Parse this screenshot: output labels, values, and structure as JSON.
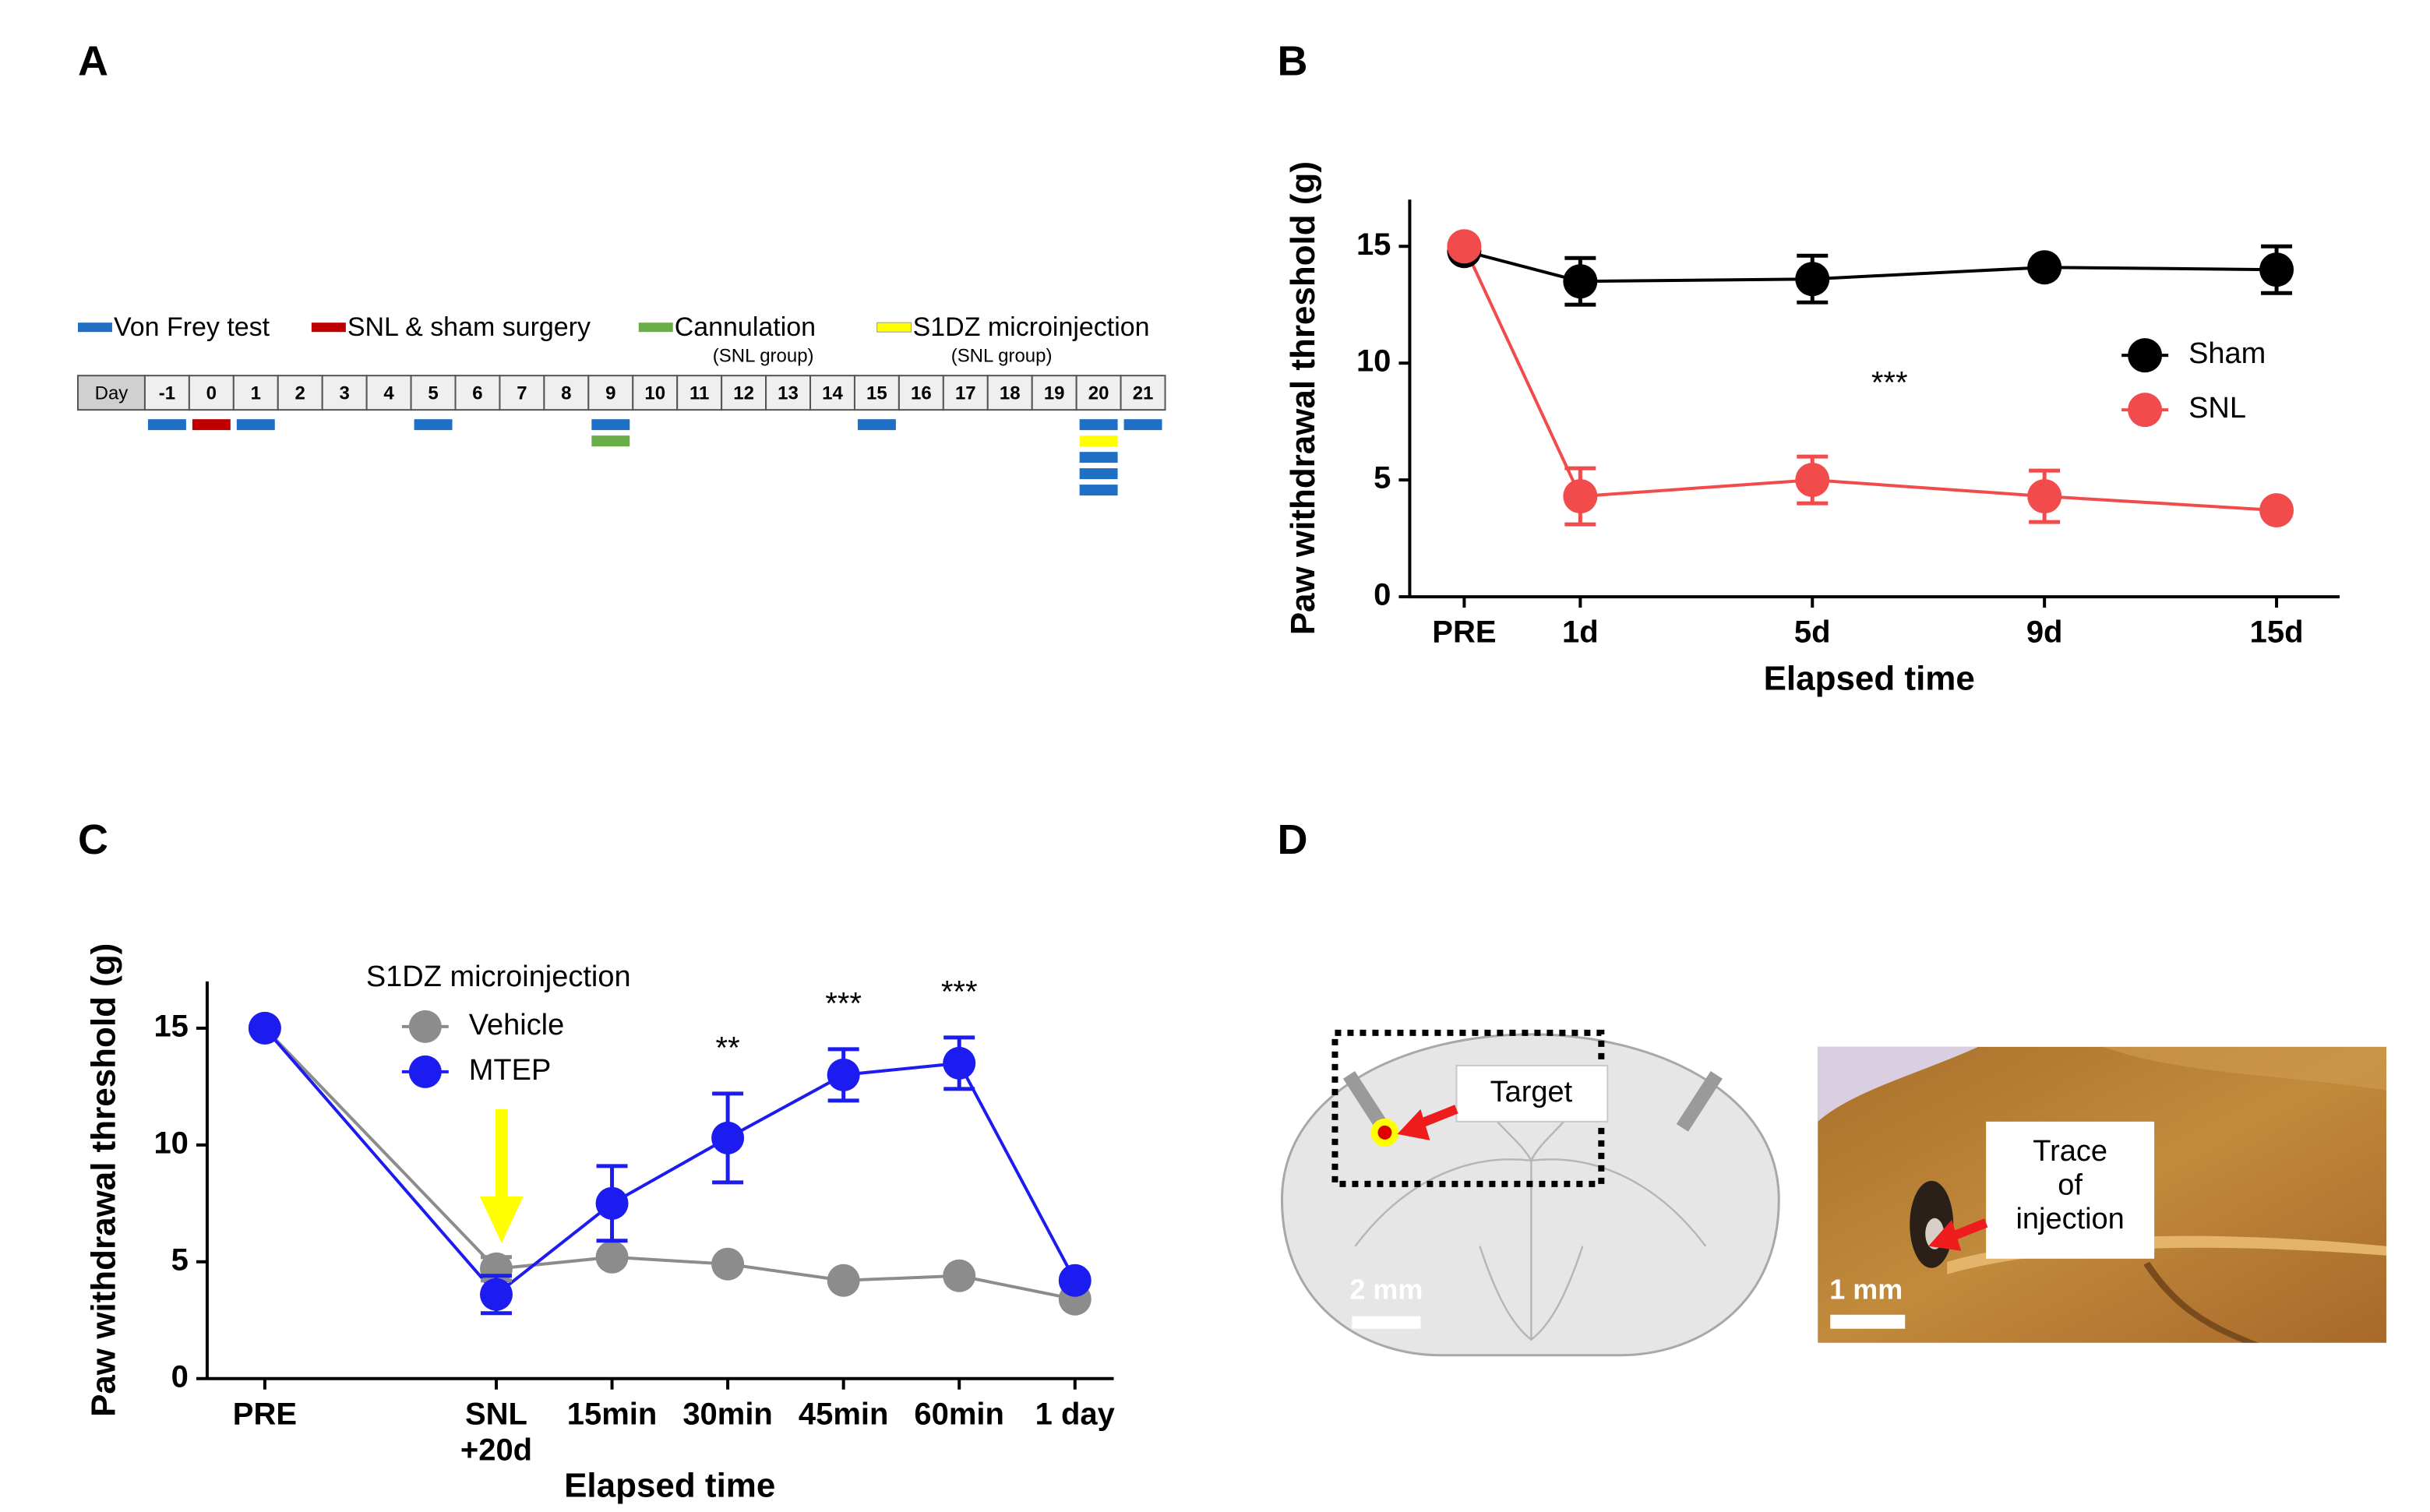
{
  "panel_labels": [
    "A",
    "B",
    "C",
    "D"
  ],
  "timeline": {
    "legend": [
      {
        "name": "Von Frey test",
        "color": "#1f6fc5"
      },
      {
        "name": "SNL & sham surgery",
        "color": "#c00000"
      },
      {
        "name": "Cannulation",
        "note": "(SNL group)",
        "color": "#6aae47"
      },
      {
        "name": "S1DZ microinjection",
        "note": "(SNL group)",
        "color": "#ffff00"
      }
    ],
    "day_label": "Day",
    "days": [
      "-1",
      "0",
      "1",
      "2",
      "3",
      "4",
      "5",
      "6",
      "7",
      "8",
      "9",
      "10",
      "11",
      "12",
      "13",
      "14",
      "15",
      "16",
      "17",
      "18",
      "19",
      "20",
      "21"
    ],
    "events": [
      [
        0
      ],
      [
        1
      ],
      [
        0
      ],
      [],
      [],
      [],
      [
        0
      ],
      [],
      [],
      [],
      [
        0,
        2
      ],
      [],
      [],
      [],
      [],
      [],
      [
        0
      ],
      [],
      [],
      [],
      [],
      [
        0,
        3,
        0,
        0,
        0
      ],
      [
        0
      ]
    ]
  },
  "chart_data": [
    {
      "type": "line",
      "ylabel": "Paw withdrawal threshold (g)",
      "xlabel": "Elapsed time",
      "categories": [
        "PRE",
        "1d",
        "5d",
        "9d",
        "15d"
      ],
      "ylim": [
        0,
        17
      ],
      "yticks": [
        0,
        5,
        10,
        15
      ],
      "annotation": "***",
      "series": [
        {
          "name": "Sham",
          "color": "#000000",
          "values": [
            14.8,
            13.5,
            13.6,
            14.1,
            14.0
          ],
          "errors": [
            0,
            1.0,
            1.0,
            0,
            1.0
          ]
        },
        {
          "name": "SNL",
          "color": "#f24b4b",
          "values": [
            15.0,
            4.3,
            5.0,
            4.3,
            3.7
          ],
          "errors": [
            0,
            1.2,
            1.0,
            1.1,
            0
          ]
        }
      ]
    },
    {
      "type": "line",
      "ylabel": "Paw withdrawal threshold (g)",
      "xlabel": "Elapsed time",
      "legend_title": "S1DZ microinjection",
      "categories": [
        "PRE",
        "SNL\n+20d",
        "15min",
        "30min",
        "45min",
        "60min",
        "1 day"
      ],
      "ylim": [
        0,
        17
      ],
      "yticks": [
        0,
        5,
        10,
        15
      ],
      "annotations": [
        null,
        null,
        null,
        "**",
        "***",
        "***",
        null
      ],
      "series": [
        {
          "name": "Vehicle",
          "color": "#8c8c8c",
          "values": [
            15.0,
            4.7,
            5.2,
            4.9,
            4.2,
            4.4,
            3.4
          ],
          "errors": [
            0,
            0.5,
            0,
            0,
            0,
            0,
            0
          ]
        },
        {
          "name": "MTEP",
          "color": "#1c1cf0",
          "values": [
            15.0,
            3.6,
            7.5,
            10.3,
            13.0,
            13.5,
            4.2
          ],
          "errors": [
            0,
            0.8,
            1.6,
            1.9,
            1.1,
            1.1,
            0
          ]
        }
      ]
    }
  ],
  "histology": {
    "target_label": "Target",
    "scale_left": "2 mm",
    "trace_label": "Trace\nof\ninjection",
    "scale_right": "1 mm"
  }
}
